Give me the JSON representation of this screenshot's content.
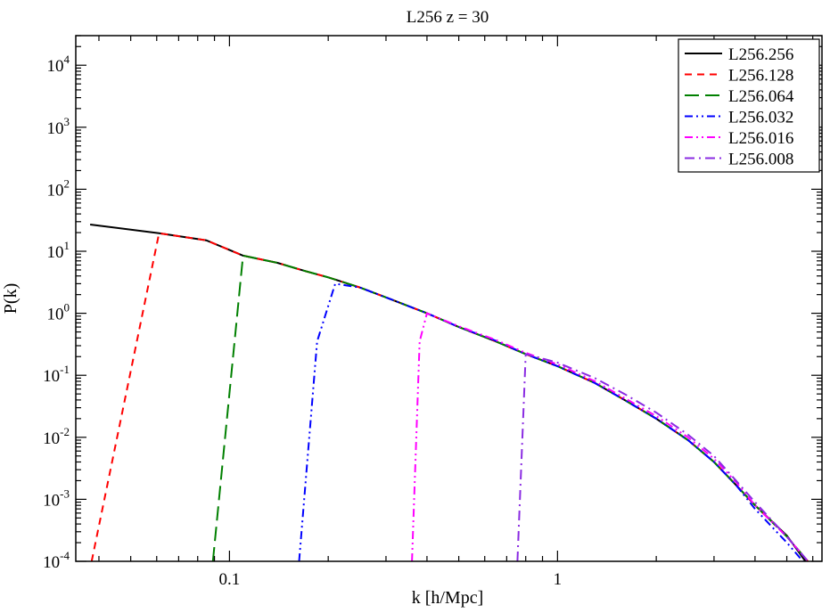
{
  "chart_data": {
    "type": "line",
    "title": "L256 z = 30",
    "xlabel": "k [h/Mpc]",
    "ylabel": "P(k)",
    "xscale": "log",
    "yscale": "log",
    "xlim": [
      0.034,
      6.4
    ],
    "ylim": [
      0.0001,
      30000
    ],
    "x_ticks": [
      {
        "value": 0.1,
        "label": "0.1"
      },
      {
        "value": 1,
        "label": "1"
      }
    ],
    "y_ticks": [
      {
        "value": 0.0001,
        "base": "10",
        "exp": "-4"
      },
      {
        "value": 0.001,
        "base": "10",
        "exp": "-3"
      },
      {
        "value": 0.01,
        "base": "10",
        "exp": "-2"
      },
      {
        "value": 0.1,
        "base": "10",
        "exp": "-1"
      },
      {
        "value": 1,
        "base": "10",
        "exp": "0"
      },
      {
        "value": 10,
        "base": "10",
        "exp": "1"
      },
      {
        "value": 100,
        "base": "10",
        "exp": "2"
      },
      {
        "value": 1000,
        "base": "10",
        "exp": "3"
      },
      {
        "value": 10000,
        "base": "10",
        "exp": "4"
      }
    ],
    "grid": false,
    "legend_position": "top-right",
    "series": [
      {
        "name": "L256.256",
        "color": "#000000",
        "dash": "solid",
        "points": [
          [
            0.0376,
            27
          ],
          [
            0.061,
            19.5
          ],
          [
            0.085,
            15
          ],
          [
            0.11,
            8.5
          ],
          [
            0.14,
            6.5
          ],
          [
            0.17,
            4.8
          ],
          [
            0.2,
            3.8
          ],
          [
            0.25,
            2.6
          ],
          [
            0.3,
            1.8
          ],
          [
            0.4,
            1.0
          ],
          [
            0.5,
            0.6
          ],
          [
            0.65,
            0.35
          ],
          [
            0.8,
            0.22
          ],
          [
            1.0,
            0.14
          ],
          [
            1.3,
            0.075
          ],
          [
            1.6,
            0.04
          ],
          [
            2.0,
            0.02
          ],
          [
            2.5,
            0.009
          ],
          [
            3.0,
            0.004
          ],
          [
            3.5,
            0.0017
          ],
          [
            4.0,
            0.0008
          ],
          [
            5.0,
            0.00026
          ],
          [
            5.7,
            0.0001
          ]
        ]
      },
      {
        "name": "L256.128",
        "color": "#ff0000",
        "dash": "short-dash",
        "points": [
          [
            0.038,
            0.0001
          ],
          [
            0.061,
            19.5
          ],
          [
            0.085,
            15
          ],
          [
            0.11,
            8.5
          ],
          [
            0.14,
            6.5
          ],
          [
            0.17,
            4.8
          ],
          [
            0.2,
            3.8
          ],
          [
            0.25,
            2.6
          ],
          [
            0.3,
            1.8
          ],
          [
            0.4,
            1.0
          ],
          [
            0.5,
            0.6
          ],
          [
            0.65,
            0.35
          ],
          [
            0.8,
            0.22
          ],
          [
            1.0,
            0.14
          ],
          [
            1.3,
            0.075
          ],
          [
            1.6,
            0.04
          ],
          [
            2.0,
            0.02
          ],
          [
            2.5,
            0.009
          ],
          [
            3.0,
            0.004
          ],
          [
            3.5,
            0.0017
          ],
          [
            4.0,
            0.0008
          ],
          [
            5.0,
            0.00025
          ],
          [
            5.8,
            0.0001
          ]
        ]
      },
      {
        "name": "L256.064",
        "color": "#008000",
        "dash": "long-dash",
        "points": [
          [
            0.089,
            0.0001
          ],
          [
            0.11,
            8.5
          ],
          [
            0.14,
            6.5
          ],
          [
            0.17,
            4.8
          ],
          [
            0.2,
            3.8
          ],
          [
            0.25,
            2.6
          ],
          [
            0.3,
            1.8
          ],
          [
            0.4,
            1.0
          ],
          [
            0.5,
            0.6
          ],
          [
            0.65,
            0.35
          ],
          [
            0.8,
            0.22
          ],
          [
            1.0,
            0.14
          ],
          [
            1.3,
            0.075
          ],
          [
            1.6,
            0.04
          ],
          [
            2.0,
            0.02
          ],
          [
            2.5,
            0.009
          ],
          [
            3.0,
            0.004
          ],
          [
            3.5,
            0.0017
          ],
          [
            4.0,
            0.0008
          ],
          [
            5.0,
            0.00025
          ],
          [
            5.8,
            0.0001
          ]
        ]
      },
      {
        "name": "L256.032",
        "color": "#0000ff",
        "dash": "dash-dot-dot",
        "points": [
          [
            0.163,
            0.0001
          ],
          [
            0.185,
            0.35
          ],
          [
            0.21,
            3.0
          ],
          [
            0.25,
            2.6
          ],
          [
            0.3,
            1.8
          ],
          [
            0.4,
            1.0
          ],
          [
            0.5,
            0.6
          ],
          [
            0.65,
            0.36
          ],
          [
            0.8,
            0.22
          ],
          [
            1.0,
            0.14
          ],
          [
            1.3,
            0.075
          ],
          [
            1.6,
            0.04
          ],
          [
            2.0,
            0.02
          ],
          [
            2.5,
            0.009
          ],
          [
            3.0,
            0.004
          ],
          [
            3.5,
            0.0017
          ],
          [
            4.0,
            0.0007
          ],
          [
            5.0,
            0.0002
          ],
          [
            5.6,
            0.0001
          ]
        ]
      },
      {
        "name": "L256.016",
        "color": "#ff00ff",
        "dash": "dash-dot-dot",
        "points": [
          [
            0.36,
            0.0001
          ],
          [
            0.38,
            0.35
          ],
          [
            0.4,
            1.0
          ],
          [
            0.5,
            0.62
          ],
          [
            0.65,
            0.37
          ],
          [
            0.8,
            0.23
          ],
          [
            1.0,
            0.15
          ],
          [
            1.3,
            0.08
          ],
          [
            1.6,
            0.043
          ],
          [
            2.0,
            0.022
          ],
          [
            2.5,
            0.01
          ],
          [
            3.0,
            0.0045
          ],
          [
            3.5,
            0.0019
          ],
          [
            4.0,
            0.0008
          ],
          [
            5.0,
            0.00025
          ],
          [
            5.8,
            0.0001
          ]
        ]
      },
      {
        "name": "L256.008",
        "color": "#8a2be2",
        "dash": "dash-dot",
        "points": [
          [
            0.755,
            0.0001
          ],
          [
            0.8,
            0.22
          ],
          [
            1.0,
            0.16
          ],
          [
            1.3,
            0.09
          ],
          [
            1.6,
            0.05
          ],
          [
            2.0,
            0.025
          ],
          [
            2.5,
            0.011
          ],
          [
            3.0,
            0.005
          ],
          [
            3.5,
            0.002
          ],
          [
            4.0,
            0.0009
          ],
          [
            5.0,
            0.00025
          ],
          [
            5.8,
            0.0001
          ]
        ]
      }
    ]
  }
}
